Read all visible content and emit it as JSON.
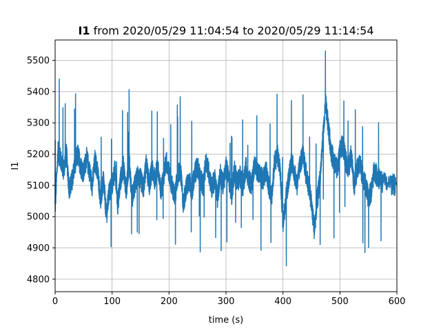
{
  "chart_data": {
    "type": "line",
    "title_bold": "I1",
    "title_rest": " from 2020/05/29 11:04:54 to 2020/05/29 11:14:54",
    "xlabel": "time (s)",
    "ylabel": "I1",
    "xlim": [
      0,
      600
    ],
    "ylim": [
      4760,
      5565
    ],
    "xticks": [
      0,
      100,
      200,
      300,
      400,
      500,
      600
    ],
    "yticks": [
      4800,
      4900,
      5000,
      5100,
      5200,
      5300,
      5400,
      5500
    ],
    "grid": true,
    "legend": "none",
    "series_color": "#1f77b4",
    "series": [
      {
        "x": [
          0,
          5,
          10,
          15,
          20,
          25,
          30,
          35,
          40,
          45,
          50,
          55,
          60,
          65,
          70,
          75,
          80,
          85,
          90,
          95,
          100,
          105,
          110,
          115,
          120,
          125,
          130,
          135,
          140,
          145,
          150,
          155,
          160,
          165,
          170,
          175,
          180,
          185,
          190,
          195,
          200,
          205,
          210,
          215,
          220,
          225,
          230,
          235,
          240,
          245,
          250,
          255,
          260,
          265,
          270,
          275,
          280,
          285,
          290,
          295,
          300,
          305,
          310,
          315,
          320,
          325,
          330,
          335,
          340,
          345,
          350,
          355,
          360,
          365,
          370,
          375,
          380,
          385,
          390,
          395,
          400,
          405,
          410,
          415,
          420,
          425,
          430,
          435,
          440,
          445,
          450,
          455,
          460,
          465,
          470,
          475,
          480,
          485,
          490,
          495,
          500,
          505,
          510,
          515,
          520,
          525,
          530,
          535,
          540,
          545,
          550,
          555,
          560,
          565,
          570,
          575,
          600
        ],
        "y": [
          5030,
          5210,
          5180,
          5150,
          5200,
          5080,
          5120,
          5170,
          5200,
          5160,
          5140,
          5190,
          5150,
          5100,
          5180,
          5140,
          5050,
          5120,
          5000,
          5080,
          5100,
          5150,
          5040,
          5120,
          5160,
          5080,
          5180,
          5060,
          5100,
          5130,
          5120,
          5090,
          5170,
          5100,
          5150,
          5120,
          5160,
          5080,
          5120,
          5180,
          5140,
          5100,
          5060,
          5130,
          5150,
          5040,
          5090,
          5120,
          5080,
          5140,
          5160,
          5120,
          5100,
          5180,
          5140,
          5090,
          5120,
          5060,
          5140,
          5100,
          5160,
          5120,
          5070,
          5150,
          5110,
          5130,
          5090,
          5160,
          5120,
          5100,
          5170,
          5140,
          5130,
          5120,
          5150,
          5100,
          5060,
          5170,
          5200,
          5150,
          4980,
          5060,
          5120,
          5180,
          5140,
          5100,
          5170,
          5200,
          5140,
          5100,
          5040,
          4960,
          5050,
          5120,
          5250,
          5360,
          5280,
          5200,
          5180,
          5150,
          5210,
          5230,
          5180,
          5150,
          5200,
          5100,
          5150,
          5170,
          5130,
          5100,
          5060,
          5080,
          5150,
          5130,
          5120,
          5110,
          5100
        ]
      }
    ]
  }
}
